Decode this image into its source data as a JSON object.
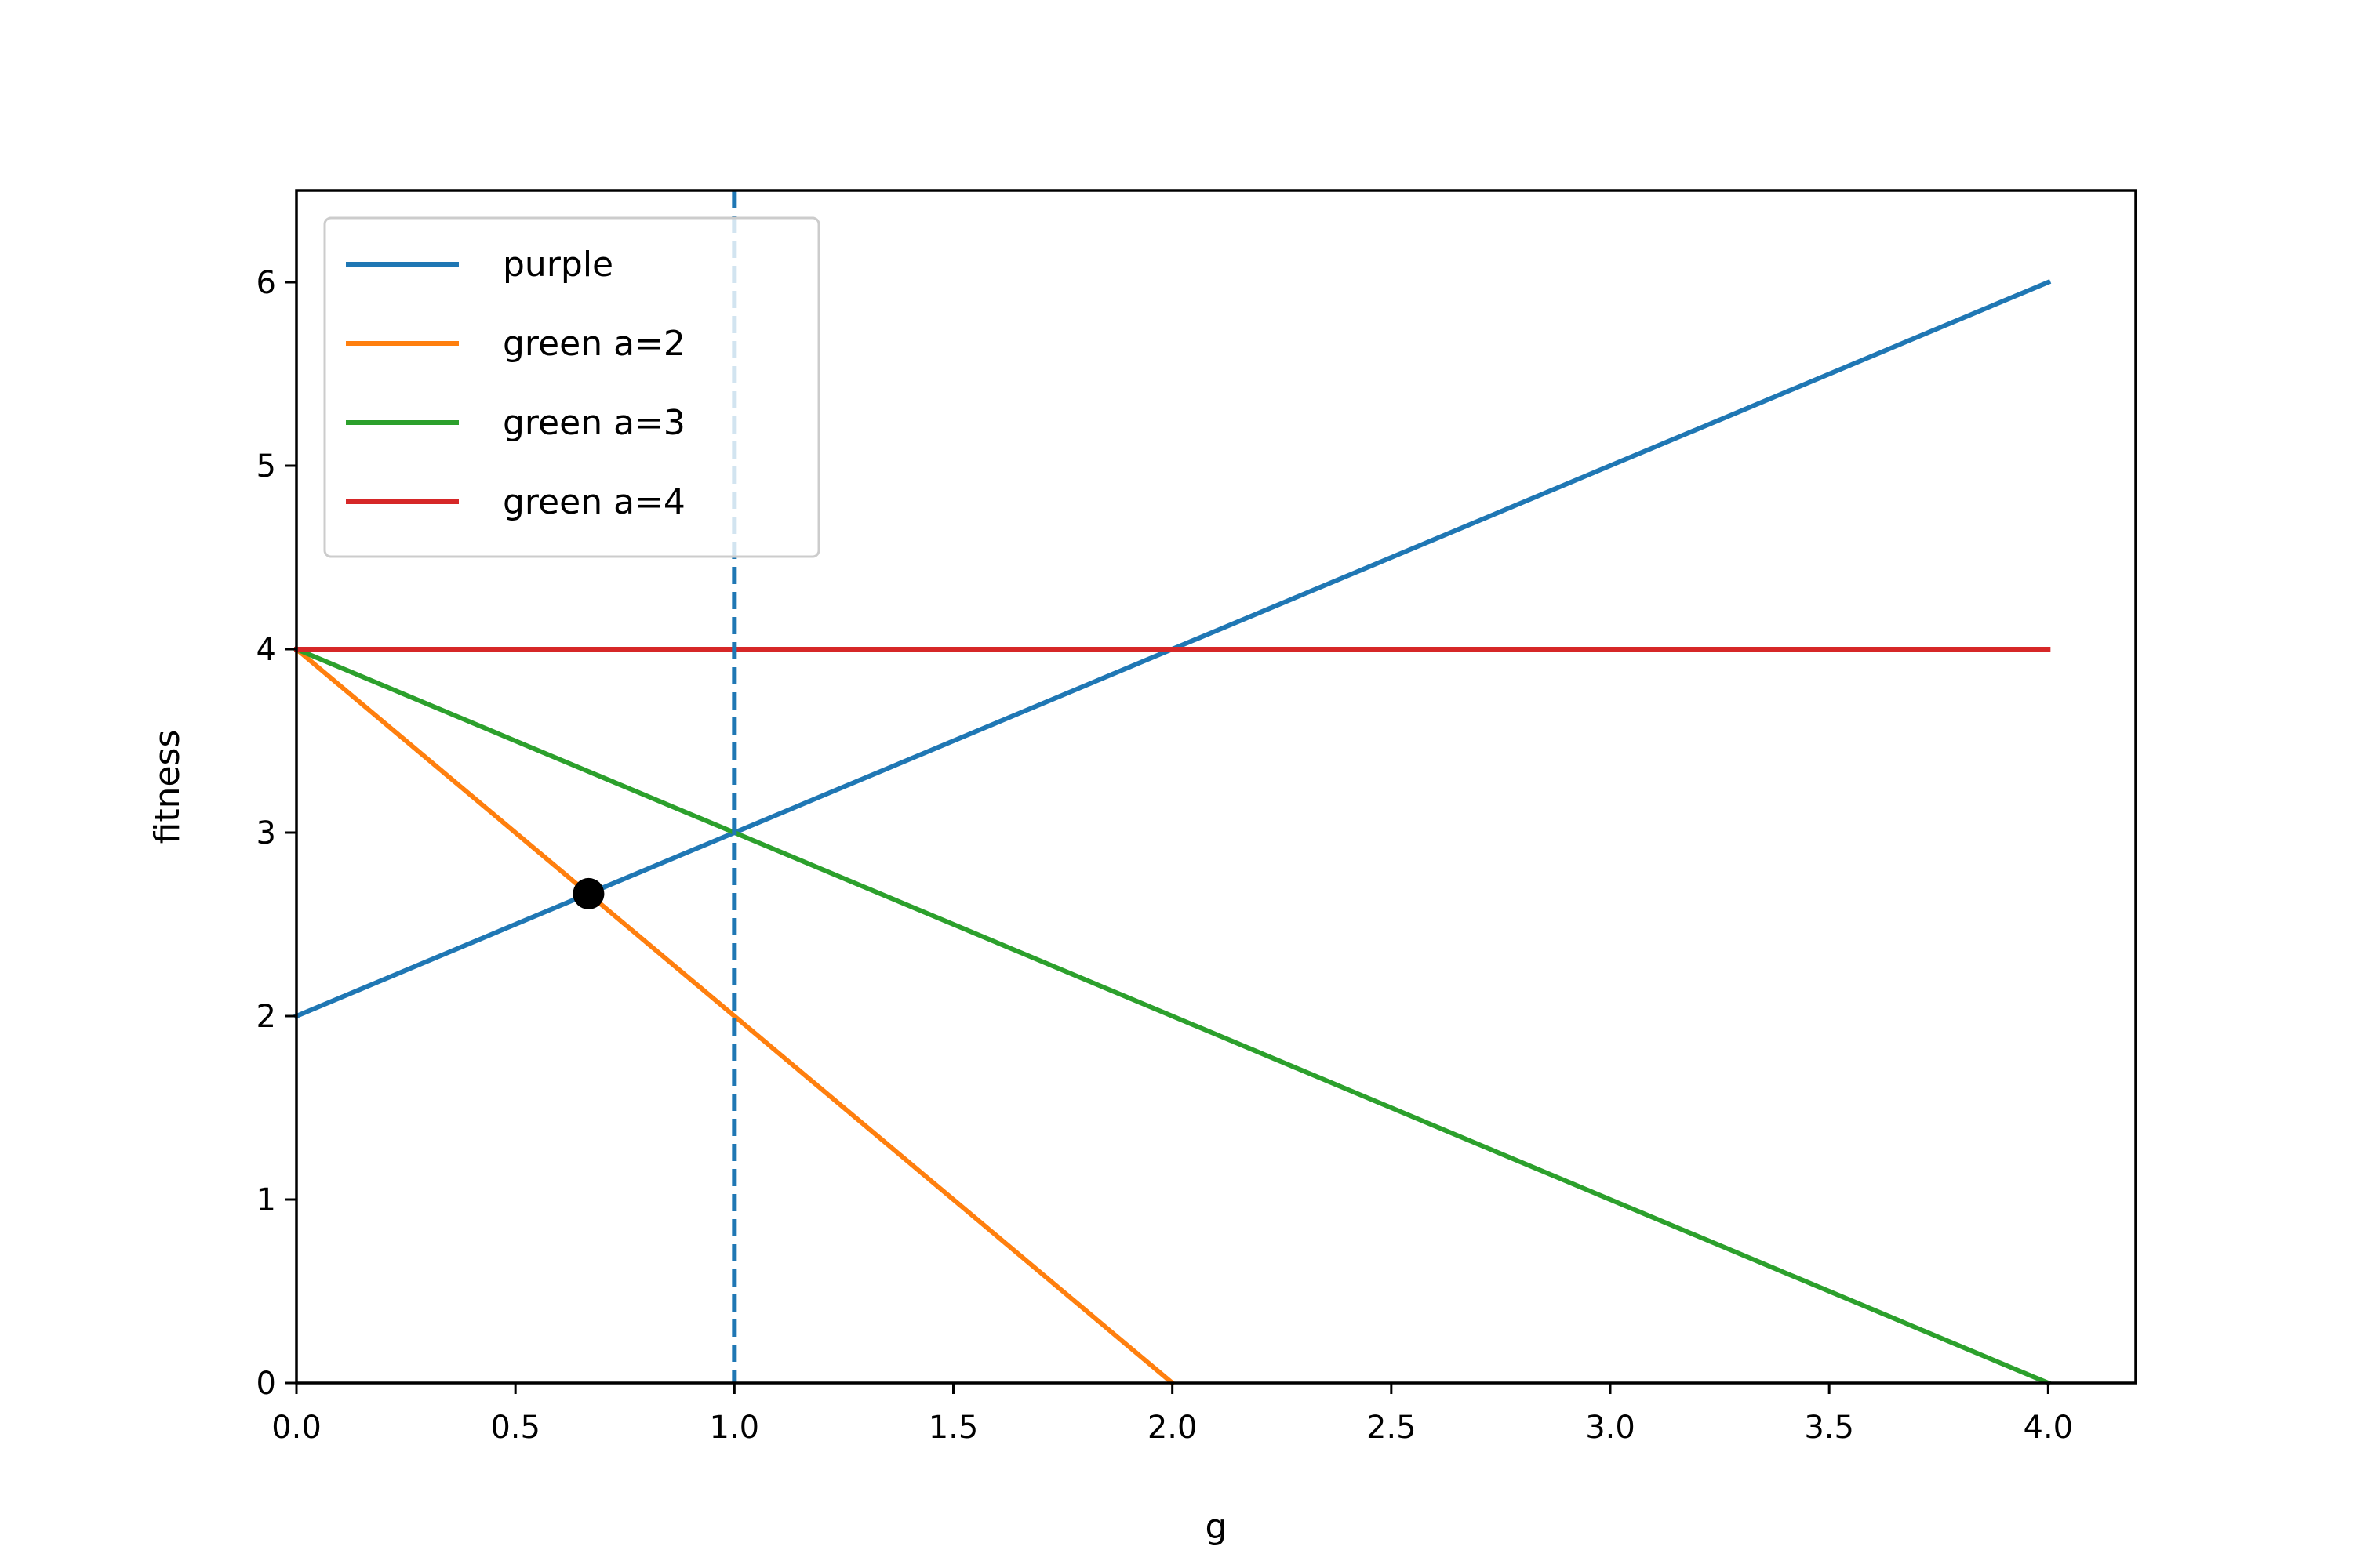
{
  "chart_data": {
    "type": "line",
    "title": "",
    "xlabel": "g",
    "ylabel": "fitness",
    "xlim": [
      0.0,
      4.2
    ],
    "ylim": [
      0,
      6.5
    ],
    "x_ticks": [
      0.0,
      0.5,
      1.0,
      1.5,
      2.0,
      2.5,
      3.0,
      3.5,
      4.0
    ],
    "x_tick_labels": [
      "0.0",
      "0.5",
      "1.0",
      "1.5",
      "2.0",
      "2.5",
      "3.0",
      "3.5",
      "4.0"
    ],
    "y_ticks": [
      0,
      1,
      2,
      3,
      4,
      5,
      6
    ],
    "y_tick_labels": [
      "0",
      "1",
      "2",
      "3",
      "4",
      "5",
      "6"
    ],
    "grid": false,
    "legend_position": "top-left",
    "series": [
      {
        "name": "purple",
        "color": "#1f77b4",
        "x": [
          0,
          4
        ],
        "y": [
          2,
          6
        ]
      },
      {
        "name": "green a=2",
        "color": "#ff7f0e",
        "x": [
          0,
          2
        ],
        "y": [
          4,
          0
        ]
      },
      {
        "name": "green a=3",
        "color": "#2ca02c",
        "x": [
          0,
          4
        ],
        "y": [
          4,
          0
        ]
      },
      {
        "name": "green a=4",
        "color": "#d62728",
        "x": [
          0,
          4
        ],
        "y": [
          4,
          4
        ]
      }
    ],
    "reference_lines": [
      {
        "orientation": "vertical",
        "x": 1.0,
        "color": "#1f77b4",
        "style": "dashed"
      }
    ],
    "points": [
      {
        "x": 0.667,
        "y": 2.667,
        "color": "#000000"
      }
    ]
  }
}
